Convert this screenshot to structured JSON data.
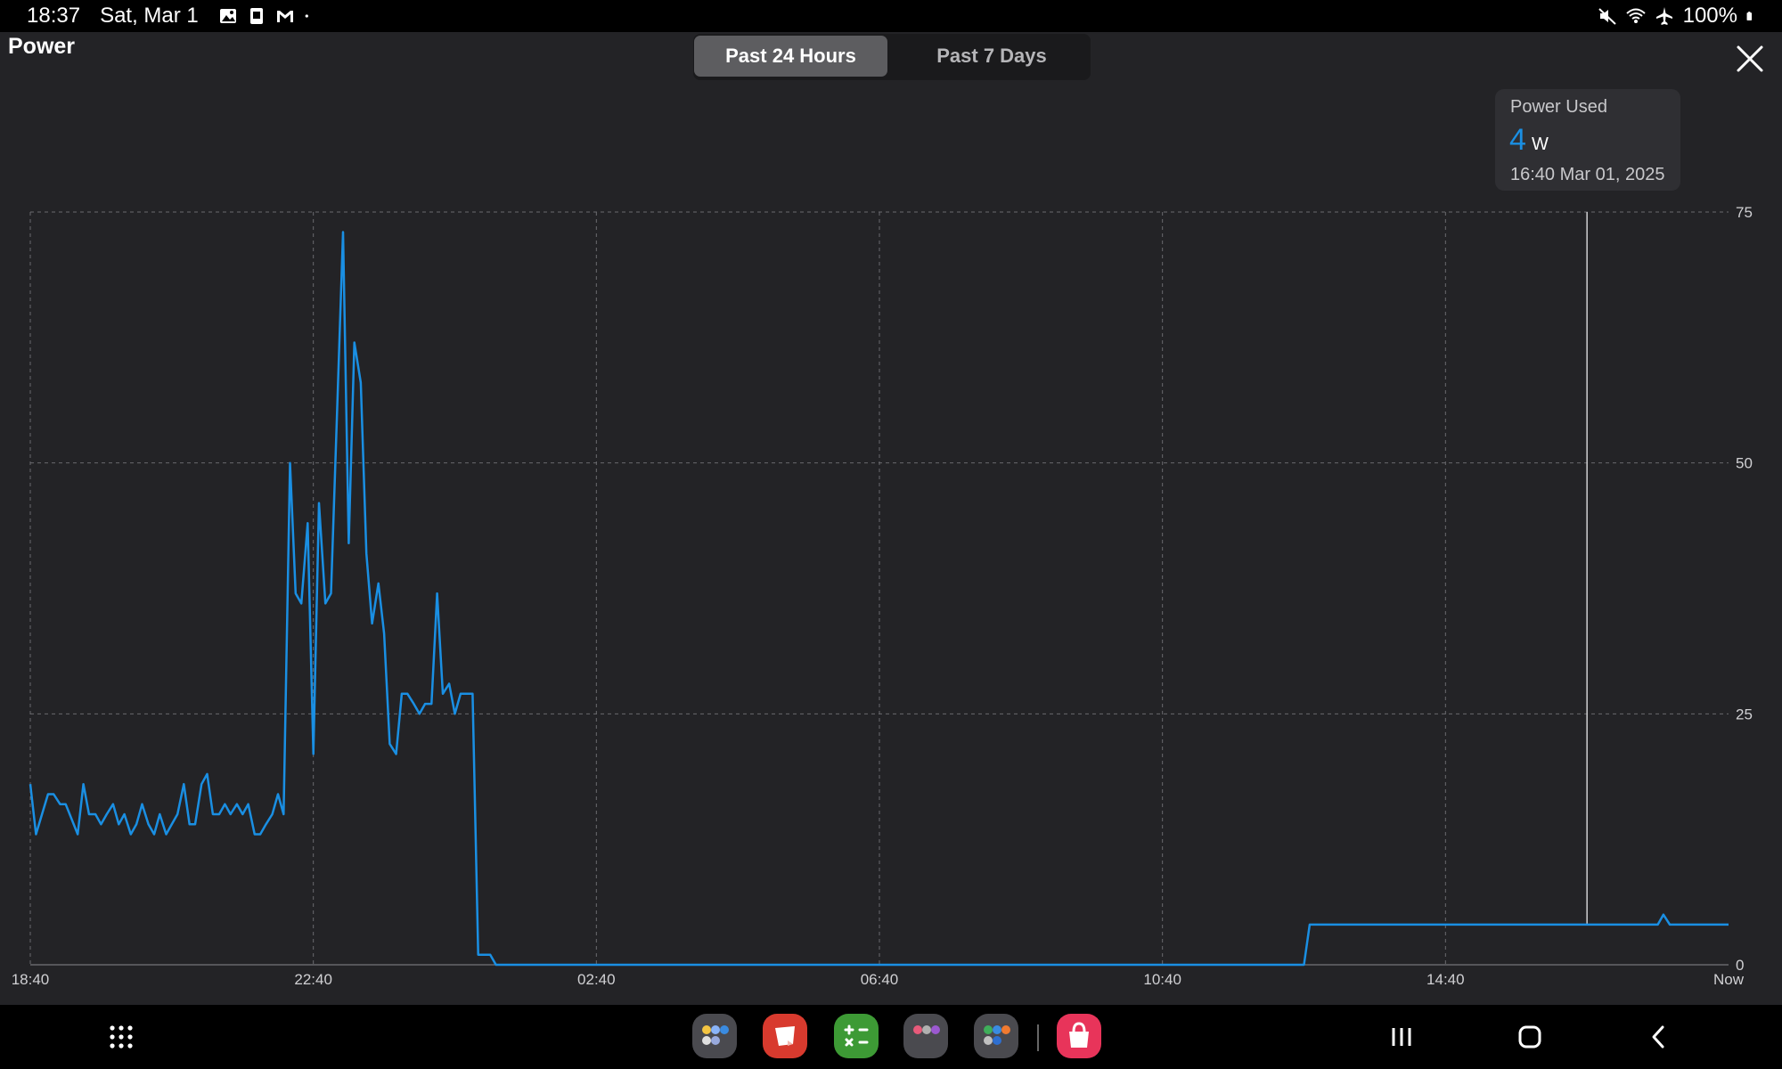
{
  "status_bar": {
    "time": "18:37",
    "date": "Sat, Mar 1",
    "battery": "100%",
    "notification_icons": [
      "gallery-icon",
      "sim-card-icon",
      "gmail-icon",
      "more-dot-icon"
    ],
    "system_icons": [
      "mute-icon",
      "wifi-icon",
      "airplane-mode-icon",
      "battery-icon"
    ]
  },
  "header": {
    "title": "Power",
    "tabs": [
      {
        "label": "Past 24 Hours",
        "selected": true
      },
      {
        "label": "Past 7 Days",
        "selected": false
      }
    ],
    "close_icon": "close-icon"
  },
  "tooltip": {
    "label": "Power Used",
    "value": "4",
    "unit": "W",
    "timestamp": "16:40  Mar 01, 2025"
  },
  "colors": {
    "series": "#1a8fe3",
    "background": "#232326",
    "grid": "#6a6a6e"
  },
  "chart_data": {
    "type": "line",
    "x_axis": {
      "start": "18:40",
      "end": "Now",
      "tick_labels": [
        "18:40",
        "22:40",
        "02:40",
        "06:40",
        "10:40",
        "14:40",
        "Now"
      ],
      "range_hours": [
        0,
        24
      ]
    },
    "y_axis": {
      "ylim": [
        0,
        75
      ],
      "tick_labels": [
        "0",
        "25",
        "50",
        "75"
      ],
      "position": "right"
    },
    "grid": true,
    "unit": "W",
    "cursor_hours": 22,
    "series": [
      {
        "x_hours": [
          0,
          0.08,
          0.25,
          0.33,
          0.42,
          0.5,
          0.67,
          0.75,
          0.83,
          0.92,
          1.0,
          1.08,
          1.17,
          1.25,
          1.33,
          1.42,
          1.5,
          1.58,
          1.67,
          1.75,
          1.83,
          1.92,
          2.0,
          2.08,
          2.17,
          2.25,
          2.33,
          2.42,
          2.5,
          2.58,
          2.67,
          2.75,
          2.83,
          2.92,
          3.0,
          3.08,
          3.17,
          3.25,
          3.33,
          3.42,
          3.5,
          3.58,
          3.67,
          3.75,
          3.83,
          3.92,
          4.0,
          4.08,
          4.17,
          4.25,
          4.33,
          4.42,
          4.5,
          4.58,
          4.67,
          4.75,
          4.83,
          4.92,
          5.0,
          5.08,
          5.17,
          5.25,
          5.33,
          5.42,
          5.5,
          5.58,
          5.67,
          5.75,
          5.83,
          5.92,
          6.0,
          6.08,
          6.25,
          6.33,
          6.5,
          6.58,
          6.67,
          6.75,
          6.83,
          6.92,
          7.0,
          7.08,
          7.25,
          7.33,
          7.42,
          7.5,
          7.67,
          7.83,
          8.0,
          12.0,
          16.0,
          18.0,
          18.08,
          20.0,
          22.0,
          23.0,
          23.08,
          23.17,
          23.25,
          24.0
        ],
        "y": [
          18,
          13,
          17,
          17,
          16,
          16,
          13,
          18,
          15,
          15,
          14,
          15,
          16,
          14,
          15,
          13,
          14,
          16,
          14,
          13,
          15,
          13,
          14,
          15,
          18,
          14,
          14,
          18,
          19,
          15,
          15,
          16,
          15,
          16,
          15,
          16,
          13,
          13,
          14,
          15,
          17,
          15,
          50,
          37,
          36,
          44,
          21,
          46,
          36,
          37,
          54,
          73,
          42,
          62,
          58,
          41,
          34,
          38,
          33,
          22,
          21,
          27,
          27,
          26,
          25,
          26,
          26,
          37,
          27,
          28,
          25,
          27,
          27,
          1,
          1,
          0,
          0,
          0,
          0,
          0,
          0,
          0,
          0,
          0,
          0,
          0,
          0,
          0,
          0,
          0,
          0,
          0,
          4,
          4,
          4,
          4,
          5,
          4,
          4,
          4
        ]
      }
    ]
  }
}
